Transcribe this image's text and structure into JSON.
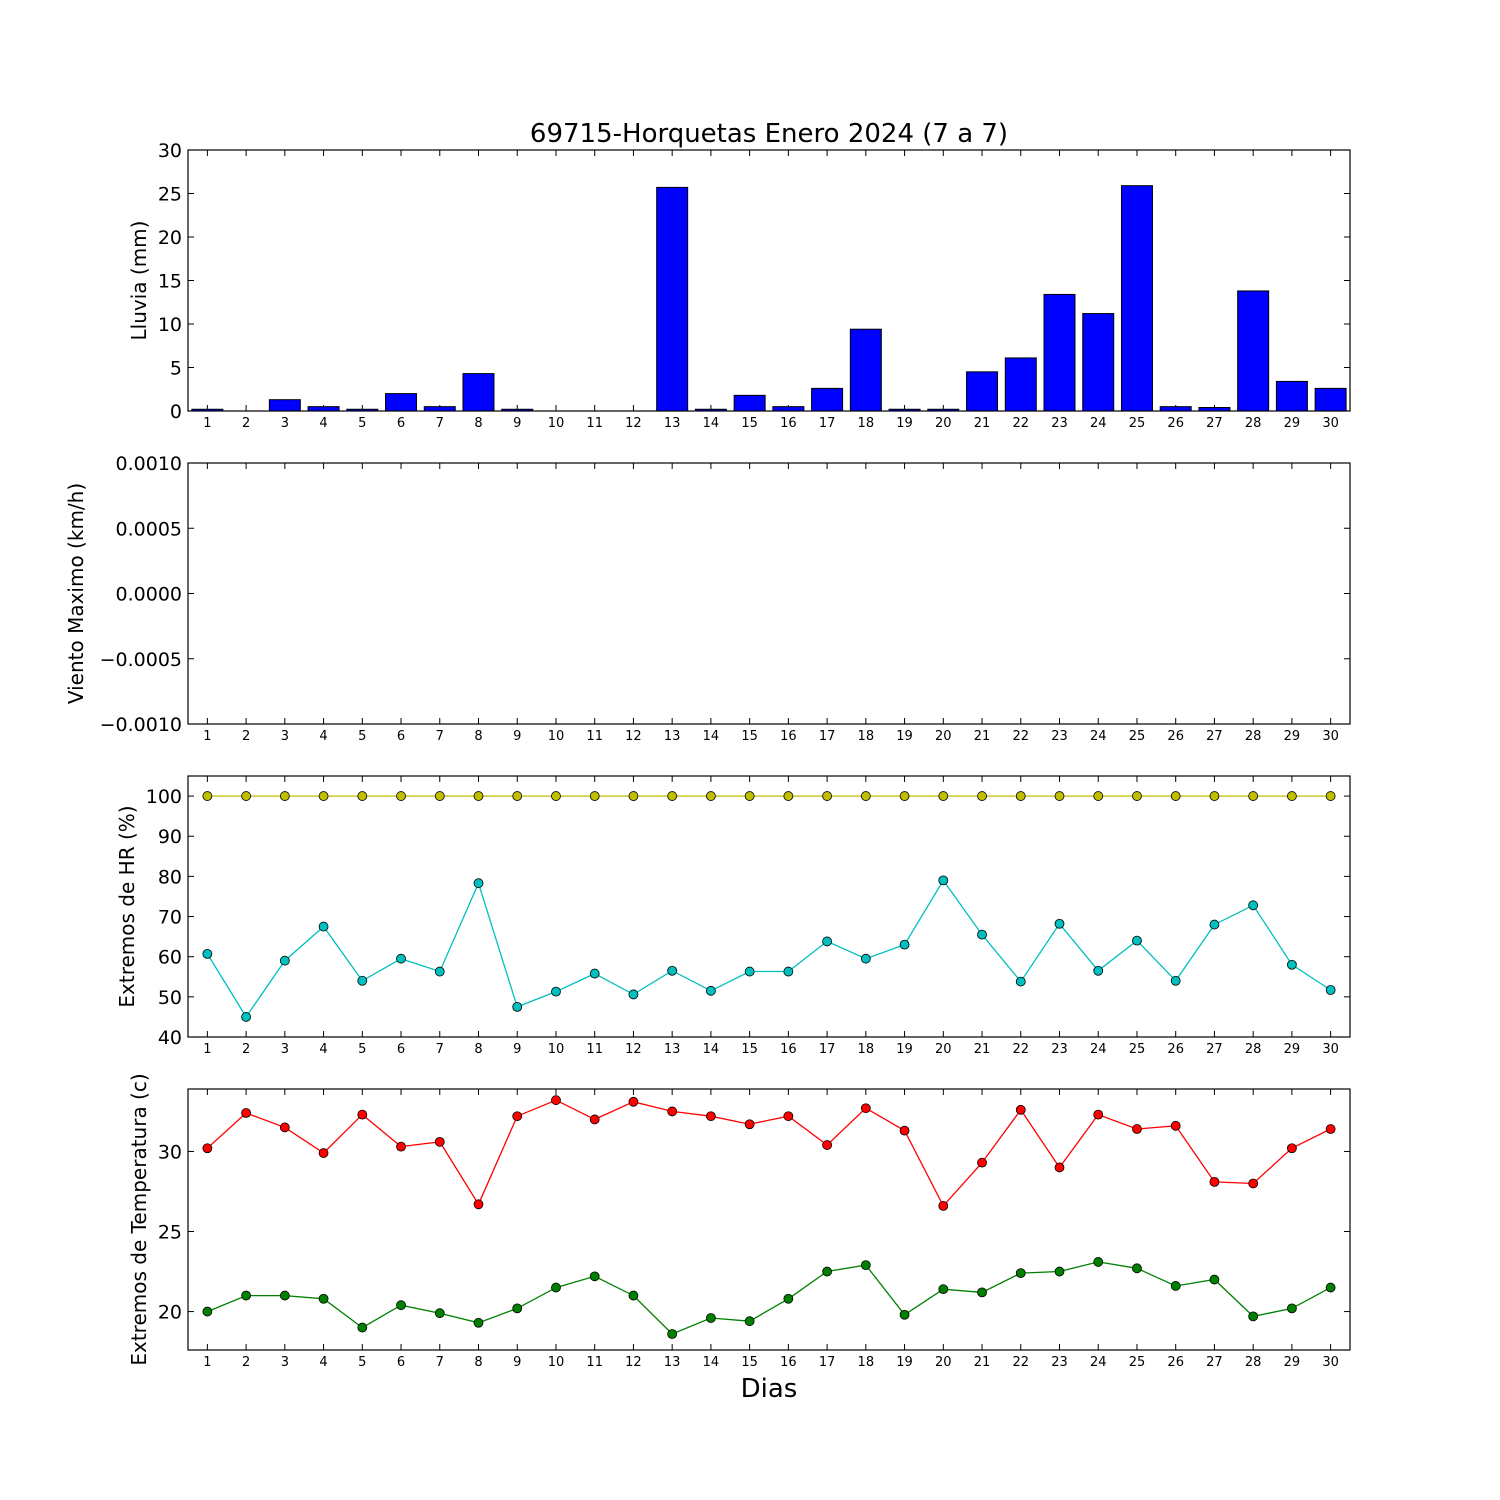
{
  "chart_data": [
    {
      "type": "bar",
      "title": "69715-Horquetas Enero 2024  (7 a 7)",
      "ylabel": "Lluvia (mm)",
      "ylim": [
        0,
        30
      ],
      "yticks": [
        0,
        5,
        10,
        15,
        20,
        25,
        30
      ],
      "categories": [
        "1",
        "2",
        "3",
        "4",
        "5",
        "6",
        "7",
        "8",
        "9",
        "10",
        "11",
        "12",
        "13",
        "14",
        "15",
        "16",
        "17",
        "18",
        "19",
        "20",
        "21",
        "22",
        "23",
        "24",
        "25",
        "26",
        "27",
        "28",
        "29",
        "30"
      ],
      "series": [
        {
          "color": "#0000ff",
          "values": [
            0.2,
            0,
            1.3,
            0.5,
            0.2,
            2.0,
            0.5,
            4.3,
            0.2,
            0,
            0,
            0,
            25.7,
            0.2,
            1.8,
            0.5,
            2.6,
            9.4,
            0.2,
            0.2,
            4.5,
            6.1,
            13.4,
            11.2,
            25.9,
            0.5,
            0.4,
            13.8,
            3.4,
            2.6
          ]
        }
      ]
    },
    {
      "type": "line",
      "ylabel": "Viento Maximo (km/h)",
      "ylim": [
        -0.001,
        0.001
      ],
      "yticks": [
        "−0.0010",
        "−0.0005",
        "0.0000",
        "0.0005",
        "0.0010"
      ],
      "categories": [
        "1",
        "2",
        "3",
        "4",
        "5",
        "6",
        "7",
        "8",
        "9",
        "10",
        "11",
        "12",
        "13",
        "14",
        "15",
        "16",
        "17",
        "18",
        "19",
        "20",
        "21",
        "22",
        "23",
        "24",
        "25",
        "26",
        "27",
        "28",
        "29",
        "30"
      ],
      "series": []
    },
    {
      "type": "line",
      "ylabel": "Extremos de HR (%)",
      "ylim": [
        40,
        105
      ],
      "yticks": [
        40,
        50,
        60,
        70,
        80,
        90,
        100
      ],
      "categories": [
        "1",
        "2",
        "3",
        "4",
        "5",
        "6",
        "7",
        "8",
        "9",
        "10",
        "11",
        "12",
        "13",
        "14",
        "15",
        "16",
        "17",
        "18",
        "19",
        "20",
        "21",
        "22",
        "23",
        "24",
        "25",
        "26",
        "27",
        "28",
        "29",
        "30"
      ],
      "series": [
        {
          "color": "#bfbf00",
          "values": [
            100,
            100,
            100,
            100,
            100,
            100,
            100,
            100,
            100,
            100,
            100,
            100,
            100,
            100,
            100,
            100,
            100,
            100,
            100,
            100,
            100,
            100,
            100,
            100,
            100,
            100,
            100,
            100,
            100,
            100
          ]
        },
        {
          "color": "#00bfbf",
          "values": [
            60.7,
            45,
            59,
            67.5,
            54,
            59.5,
            56.3,
            78.3,
            47.5,
            51.3,
            55.8,
            50.6,
            56.5,
            51.5,
            56.3,
            56.3,
            63.8,
            59.5,
            63,
            79,
            65.5,
            53.8,
            68.2,
            56.5,
            64,
            54,
            68,
            72.8,
            58,
            51.7
          ]
        }
      ]
    },
    {
      "type": "line",
      "ylabel": "Extremos de Temperatura (c)",
      "xlabel": "Dias",
      "ylim": [
        17.6,
        33.9
      ],
      "yticks": [
        20,
        25,
        30
      ],
      "categories": [
        "1",
        "2",
        "3",
        "4",
        "5",
        "6",
        "7",
        "8",
        "9",
        "10",
        "11",
        "12",
        "13",
        "14",
        "15",
        "16",
        "17",
        "18",
        "19",
        "20",
        "21",
        "22",
        "23",
        "24",
        "25",
        "26",
        "27",
        "28",
        "29",
        "30"
      ],
      "series": [
        {
          "color": "#ff0000",
          "values": [
            30.2,
            32.4,
            31.5,
            29.9,
            32.3,
            30.3,
            30.6,
            26.7,
            32.2,
            33.2,
            32.0,
            33.1,
            32.5,
            32.2,
            31.7,
            32.2,
            30.4,
            32.7,
            31.3,
            26.6,
            29.3,
            32.6,
            29.0,
            32.3,
            31.4,
            31.6,
            28.1,
            28.0,
            30.2,
            31.4
          ]
        },
        {
          "color": "#008000",
          "values": [
            20.0,
            21.0,
            21.0,
            20.8,
            19.0,
            20.4,
            19.9,
            19.3,
            20.2,
            21.5,
            22.2,
            21.0,
            18.6,
            19.6,
            19.4,
            20.8,
            22.5,
            22.9,
            19.8,
            21.4,
            21.2,
            22.4,
            22.5,
            23.1,
            22.7,
            21.6,
            22.0,
            19.7,
            20.2,
            21.5
          ]
        }
      ]
    }
  ]
}
